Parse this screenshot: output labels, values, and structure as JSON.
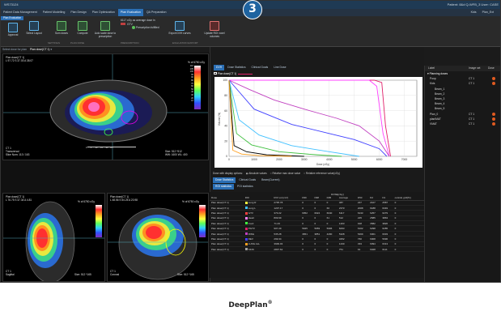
{
  "badge": {
    "number": "3"
  },
  "window": {
    "title": "WS73124",
    "patient_info": "Patient: 8&d Q-WFB_3  User: CASE",
    "target_label": "Kids",
    "plan_label": "Plan_Ext"
  },
  "menu": {
    "items": [
      "Patient Data Management",
      "Patient Modelling",
      "Plan Design",
      "Plan Optimization",
      "Plan Evaluation",
      "QA Preparation"
    ],
    "active": "Plan Evaluation",
    "subtab": "Plan Evaluation"
  },
  "ribbon": {
    "buttons": [
      {
        "label": "Approval",
        "icon": "approval-icon"
      },
      {
        "label": "Select Layout",
        "icon": "layout-icon"
      },
      {
        "label": "Sum doses",
        "icon": "sum-icon"
      },
      {
        "label": "Compute",
        "icon": "compute-icon"
      },
      {
        "label": "Auto scale dose to prescription",
        "icon": "scale-icon"
      },
      {
        "label": "Export DVH curves",
        "icon": "export-icon"
      },
      {
        "label": "Update ROI voxel volumes",
        "icon": "update-icon"
      }
    ],
    "groups": [
      "SETTINGS",
      "PLAN DOSE",
      "PRESCRIPTION",
      "EVALUATION EXPORT"
    ],
    "prescription_text": "6117 cGy as average dose in",
    "prescription_roi": "GTV",
    "prescription_status": "Prescription fulfilled"
  },
  "left": {
    "top_label": "Plan dose(CT 1)",
    "select_label": "Select dose for plan",
    "select_value": "Plan dose(CT 1)",
    "views": [
      {
        "title": "Plan dose(CT 1)",
        "coords": "L 97.72 S 37.03 A 38.07",
        "legend": "% of 6750 cGy",
        "ct": "CT 1",
        "orient": "Transversal",
        "slice": "Slice Num: 113 / 163",
        "size": "Size: 512 *512",
        "ww": "WW: 1600  WL: 400"
      },
      {
        "title": "Plan dose(CT 1)",
        "coords": "L 76.75 S 47.34 A 4.81",
        "legend": "% of 6750 cGy",
        "ct": "CT 1",
        "orient": "Sagittal",
        "size": "Size: 512 *165"
      },
      {
        "title": "Plan dose(CT 1)",
        "coords": "L 48.56 S 54.25 A 20.98",
        "legend": "% of 6750 cGy",
        "ct": "CT 1",
        "orient": "Coronal",
        "size": "Size: 512 *165"
      }
    ],
    "scale": [
      {
        "label": "110",
        "color": "#ffffff"
      },
      {
        "label": "105",
        "color": "#ff4040"
      },
      {
        "label": "100",
        "color": "#ff8000"
      },
      {
        "label": "95",
        "color": "#ffc000"
      },
      {
        "label": "90",
        "color": "#ffff40"
      },
      {
        "label": "80",
        "color": "#80ff40"
      },
      {
        "label": "70",
        "color": "#40e080"
      },
      {
        "label": "60",
        "color": "#40c0ff"
      },
      {
        "label": "50",
        "color": "#4080ff"
      },
      {
        "label": "40",
        "color": "#4040ff"
      },
      {
        "label": "30",
        "color": "#8040c0"
      },
      {
        "label": "20",
        "color": "#a040a0"
      },
      {
        "label": "10",
        "color": "#602080"
      }
    ],
    "ruler": [
      "0",
      "5",
      "10",
      "15",
      "20"
    ],
    "ruler_unit": "cm"
  },
  "dvh": {
    "tabs": [
      "DVH",
      "Dose Statistics",
      "Clinical Goals",
      "Line Dose"
    ],
    "active_tab": "DVH",
    "plan_chip": "Plan dose(CT 1)",
    "ylabel": "Volume (%)",
    "xlabel": "Dose (cGy)",
    "ticks_x": [
      "0",
      "1000",
      "2000",
      "3000",
      "4000",
      "5000",
      "6000",
      "7000"
    ],
    "ticks_y": [
      "0",
      "20",
      "40",
      "60",
      "80",
      "100"
    ]
  },
  "chart_data": {
    "type": "line",
    "xlabel": "Dose (cGy)",
    "ylabel": "Volume (%)",
    "xlim": [
      0,
      7500
    ],
    "ylim": [
      0,
      100
    ],
    "series": [
      {
        "color": "#e0206a",
        "x": [
          0,
          5800,
          6100,
          6250,
          6450
        ],
        "y": [
          100,
          100,
          97,
          40,
          0
        ]
      },
      {
        "color": "#ff40ff",
        "x": [
          0,
          5600,
          5900,
          6150,
          6400
        ],
        "y": [
          100,
          100,
          92,
          30,
          0
        ]
      },
      {
        "color": "#c040c0",
        "x": [
          0,
          800,
          1800,
          3000,
          4300,
          5200,
          6000,
          6400
        ],
        "y": [
          100,
          88,
          74,
          62,
          50,
          40,
          20,
          0
        ]
      },
      {
        "color": "#4040ff",
        "x": [
          0,
          1000,
          2500,
          4000,
          5000,
          6000,
          6300
        ],
        "y": [
          100,
          62,
          42,
          30,
          22,
          10,
          0
        ]
      },
      {
        "color": "#40c0ff",
        "x": [
          0,
          400,
          1200,
          2500,
          4000,
          5200
        ],
        "y": [
          100,
          48,
          28,
          14,
          6,
          0
        ]
      },
      {
        "color": "#40c040",
        "x": [
          0,
          300,
          900,
          2000,
          3500,
          4500
        ],
        "y": [
          100,
          30,
          15,
          6,
          2,
          0
        ]
      },
      {
        "color": "#000000",
        "x": [
          0,
          200,
          700,
          1500,
          3000
        ],
        "y": [
          100,
          14,
          6,
          2,
          0
        ]
      },
      {
        "color": "#ffa020",
        "x": [
          0,
          150,
          500,
          1200,
          2500
        ],
        "y": [
          100,
          8,
          3,
          1,
          0
        ]
      }
    ]
  },
  "options": {
    "show_label": "Dose with display options:",
    "radios": [
      "Absolute values",
      "Relative max dose value",
      "Relative reference value(cGy)"
    ],
    "stat_tabs": [
      "Dose Statistics",
      "Clinical Goals",
      "Beam(Current)"
    ],
    "sub_tabs": [
      "ROI statistics",
      "POI statistics"
    ]
  },
  "table": {
    "headers": [
      "Dose",
      "ROI",
      "ROI vol.(cm³)",
      "D99",
      "D98",
      "D95",
      "Average",
      "D50",
      "D2",
      "D1",
      "outside grid[%]"
    ],
    "doses_header": "DOSE[cGy]",
    "rows": [
      {
        "dose": "Plan dose(CT 1)",
        "roi": "Lung R",
        "color": "#ffff40",
        "vol": "2735.78",
        "d99": "0",
        "d98": "0",
        "d95": "0",
        "avg": "487",
        "d50": "227",
        "d2": "2107",
        "d1": "2587",
        "og": "0"
      },
      {
        "dose": "Plan dose(CT 1)",
        "roi": "Lung L",
        "color": "#40c0ff",
        "vol": "1237.17",
        "d99": "0",
        "d98": "0",
        "d95": "66",
        "avg": "2373",
        "d50": "2008",
        "d2": "6188",
        "d1": "6349",
        "og": "0"
      },
      {
        "dose": "Plan dose(CT 1)",
        "roi": "GTV",
        "color": "#ff4040",
        "vol": "373.22",
        "d99": "6052",
        "d98": "6024",
        "d95": "6040",
        "avg": "6117",
        "d50": "6133",
        "d2": "6257",
        "d1": "6279",
        "og": "0"
      },
      {
        "dose": "Plan dose(CT 1)",
        "roi": "Heart",
        "color": "#ff80ff",
        "vol": "809.99",
        "d99": "0",
        "d98": "0",
        "d95": "61",
        "avg": "512",
        "d50": "225",
        "d2": "2585",
        "d1": "3863",
        "og": "0"
      },
      {
        "dose": "Plan dose(CT 1)",
        "roi": "Cord",
        "color": "#40ff40",
        "vol": "71.43",
        "d99": "0",
        "d98": "0",
        "d95": "0",
        "avg": "1203",
        "d50": "918",
        "d2": "3582",
        "d1": "3826",
        "og": "0"
      },
      {
        "dose": "Plan dose(CT 1)",
        "roi": "PGTV",
        "color": "#e0206a",
        "vol": "907.29",
        "d99": "5945",
        "d98": "5959",
        "d95": "5996",
        "avg": "6063",
        "d50": "6102",
        "d2": "6298",
        "d1": "6285",
        "og": "0"
      },
      {
        "dose": "Plan dose(CT 1)",
        "roi": "RING",
        "color": "#c040c0",
        "vol": "535.28",
        "d99": "3651",
        "d98": "3851",
        "d95": "4290",
        "avg": "5328",
        "d50": "5469",
        "d2": "6001",
        "d1": "6033",
        "og": "0"
      },
      {
        "dose": "Plan dose(CT 1)",
        "roi": "DEV",
        "color": "#4040ff",
        "vol": "299.34",
        "d99": "0",
        "d98": "0",
        "d95": "0",
        "avg": "3252",
        "d50": "760",
        "d2": "6008",
        "d1": "5996",
        "og": "0"
      },
      {
        "dose": "Plan dose(CT 1)",
        "roi": "LUNG ALL",
        "color": "#ffa020",
        "vol": "3939.03",
        "d99": "0",
        "d98": "0",
        "d95": "0",
        "avg": "1230",
        "d50": "333",
        "d2": "6094",
        "d1": "6313",
        "og": "0"
      },
      {
        "dose": "Plan dose(CT 1)",
        "roi": "SKIN",
        "color": "#a0a0a0",
        "vol": "2837.62",
        "d99": "0",
        "d98": "0",
        "d95": "0",
        "avg": "751",
        "d50": "91",
        "d2": "6028",
        "d1": "6111",
        "og": "0"
      }
    ]
  },
  "planlist": {
    "headers": [
      "Label",
      "Image set",
      "Dose"
    ],
    "group": "Planning doses",
    "items": [
      {
        "label": "Poop",
        "image": "CT 1",
        "level": 1
      },
      {
        "label": "Kids",
        "image": "CT 1",
        "level": 1
      },
      {
        "label": "Beam_1",
        "image": "",
        "level": 2
      },
      {
        "label": "Beam_2",
        "image": "",
        "level": 2
      },
      {
        "label": "Beam_3",
        "image": "",
        "level": 2
      },
      {
        "label": "Beam_4",
        "image": "",
        "level": 2
      },
      {
        "label": "Beam_5",
        "image": "",
        "level": 2
      },
      {
        "label": "Plan_0",
        "image": "CT 1",
        "level": 1
      },
      {
        "label": "planIMAT",
        "image": "CT 1",
        "level": 1
      },
      {
        "label": "VMAT",
        "image": "CT 1",
        "level": 1
      }
    ]
  },
  "caption": {
    "text": "DeepPlan",
    "mark": "®"
  }
}
